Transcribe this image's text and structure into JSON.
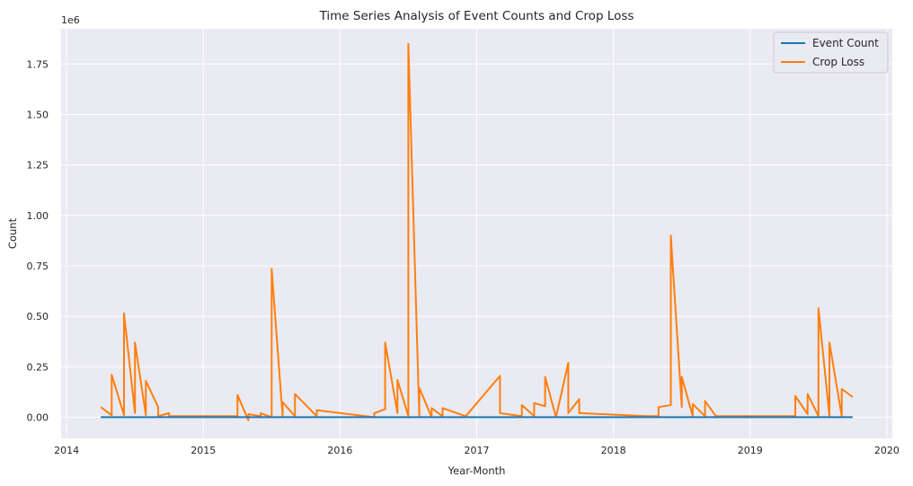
{
  "chart_data": {
    "type": "line",
    "title": "Time Series Analysis of Event Counts and Crop Loss",
    "xlabel": "Year-Month",
    "ylabel": "Count",
    "y_offset_text": "1e6",
    "xlim": [
      2013.96,
      2020.04
    ],
    "ylim": [
      -0.105,
      1.925
    ],
    "x_ticks": [
      2014,
      2015,
      2016,
      2017,
      2018,
      2019,
      2020
    ],
    "x_tick_labels": [
      "2014",
      "2015",
      "2016",
      "2017",
      "2018",
      "2019",
      "2020"
    ],
    "y_ticks": [
      0,
      0.25,
      0.5,
      0.75,
      1.0,
      1.25,
      1.5,
      1.75
    ],
    "y_tick_labels": [
      "0.00",
      "0.25",
      "0.50",
      "0.75",
      "1.00",
      "1.25",
      "1.50",
      "1.75"
    ],
    "grid": true,
    "legend_position": "top-right",
    "series": [
      {
        "name": "Event Count",
        "color": "#1f77b4",
        "x": [
          2014.25,
          2019.75
        ],
        "y": [
          0.0,
          0.0
        ]
      },
      {
        "name": "Crop Loss",
        "color": "#ff7f0e",
        "x": [
          2014.25,
          2014.33,
          2014.33,
          2014.42,
          2014.42,
          2014.5,
          2014.5,
          2014.58,
          2014.58,
          2014.67,
          2014.67,
          2014.75,
          2014.75,
          2014.83,
          2015.25,
          2015.25,
          2015.33,
          2015.33,
          2015.42,
          2015.42,
          2015.5,
          2015.5,
          2015.58,
          2015.58,
          2015.67,
          2015.67,
          2015.83,
          2015.83,
          2016.25,
          2016.25,
          2016.33,
          2016.33,
          2016.42,
          2016.42,
          2016.5,
          2016.5,
          2016.58,
          2016.58,
          2016.67,
          2016.67,
          2016.75,
          2016.75,
          2016.92,
          2017.17,
          2017.17,
          2017.33,
          2017.33,
          2017.42,
          2017.42,
          2017.5,
          2017.5,
          2017.58,
          2017.67,
          2017.67,
          2017.75,
          2017.75,
          2018.25,
          2018.33,
          2018.33,
          2018.42,
          2018.42,
          2018.5,
          2018.5,
          2018.58,
          2018.58,
          2018.67,
          2018.67,
          2018.75,
          2019.33,
          2019.33,
          2019.42,
          2019.42,
          2019.5,
          2019.5,
          2019.58,
          2019.58,
          2019.67,
          2019.67,
          2019.75
        ],
        "y": [
          0.05,
          0.01,
          0.21,
          0.01,
          0.515,
          0.02,
          0.37,
          0.01,
          0.18,
          0.05,
          0.005,
          0.02,
          0.005,
          0.005,
          0.005,
          0.11,
          -0.015,
          0.015,
          0.005,
          0.02,
          0.0,
          0.735,
          0.005,
          0.075,
          0.005,
          0.115,
          0.005,
          0.035,
          0.0,
          0.02,
          0.04,
          0.37,
          0.02,
          0.185,
          0.005,
          1.85,
          0.005,
          0.145,
          0.0,
          0.045,
          0.005,
          0.045,
          0.005,
          0.205,
          0.02,
          0.005,
          0.06,
          0.005,
          0.07,
          0.055,
          0.2,
          0.0,
          0.27,
          0.02,
          0.09,
          0.02,
          0.005,
          0.005,
          0.05,
          0.06,
          0.9,
          0.05,
          0.2,
          0.005,
          0.065,
          0.005,
          0.08,
          0.005,
          0.005,
          0.105,
          0.015,
          0.115,
          0.005,
          0.54,
          0.005,
          0.37,
          0.005,
          0.14,
          0.1
        ]
      }
    ]
  }
}
